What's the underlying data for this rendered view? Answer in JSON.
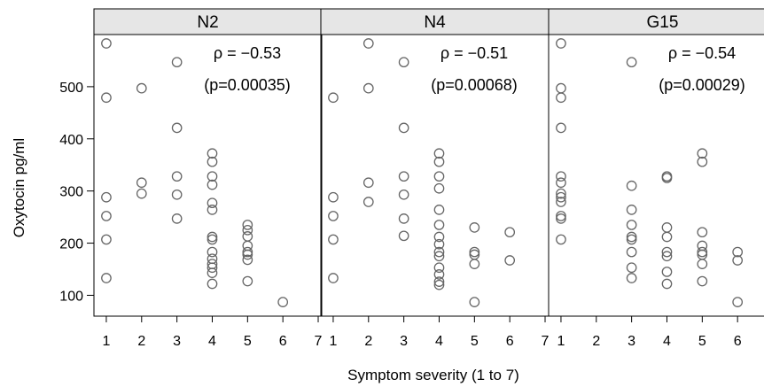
{
  "chart_data": {
    "type": "scatter",
    "xlabel": "Symptom severity (1 to 7)",
    "ylabel": "Oxytocin pg/ml",
    "xlim": [
      0.65,
      7.1
    ],
    "ylim": [
      60,
      600
    ],
    "xticks": [
      1,
      2,
      3,
      4,
      5,
      6,
      7
    ],
    "yticks": [
      100,
      200,
      300,
      400,
      500
    ],
    "marker": "open-circle",
    "marker_color": "#666666",
    "grid": false,
    "panels": [
      {
        "label": "N2",
        "rho_text": "ρ = −0.53",
        "p_text": "(p=0.00035)",
        "points": [
          {
            "x": 1,
            "y": 583
          },
          {
            "x": 1,
            "y": 479
          },
          {
            "x": 1,
            "y": 288
          },
          {
            "x": 1,
            "y": 252
          },
          {
            "x": 1,
            "y": 207
          },
          {
            "x": 1,
            "y": 133
          },
          {
            "x": 2,
            "y": 497
          },
          {
            "x": 2,
            "y": 316
          },
          {
            "x": 2,
            "y": 295
          },
          {
            "x": 3,
            "y": 547
          },
          {
            "x": 3,
            "y": 421
          },
          {
            "x": 3,
            "y": 328
          },
          {
            "x": 3,
            "y": 293
          },
          {
            "x": 3,
            "y": 247
          },
          {
            "x": 4,
            "y": 372
          },
          {
            "x": 4,
            "y": 356
          },
          {
            "x": 4,
            "y": 328
          },
          {
            "x": 4,
            "y": 312
          },
          {
            "x": 4,
            "y": 277
          },
          {
            "x": 4,
            "y": 264
          },
          {
            "x": 4,
            "y": 212
          },
          {
            "x": 4,
            "y": 207
          },
          {
            "x": 4,
            "y": 183
          },
          {
            "x": 4,
            "y": 170
          },
          {
            "x": 4,
            "y": 160
          },
          {
            "x": 4,
            "y": 153
          },
          {
            "x": 4,
            "y": 143
          },
          {
            "x": 4,
            "y": 122
          },
          {
            "x": 5,
            "y": 235
          },
          {
            "x": 5,
            "y": 225
          },
          {
            "x": 5,
            "y": 213
          },
          {
            "x": 5,
            "y": 195
          },
          {
            "x": 5,
            "y": 183
          },
          {
            "x": 5,
            "y": 178
          },
          {
            "x": 5,
            "y": 168
          },
          {
            "x": 5,
            "y": 127
          },
          {
            "x": 6,
            "y": 87
          }
        ]
      },
      {
        "label": "N4",
        "rho_text": "ρ = −0.51",
        "p_text": "(p=0.00068)",
        "points": [
          {
            "x": 1,
            "y": 479
          },
          {
            "x": 1,
            "y": 288
          },
          {
            "x": 1,
            "y": 252
          },
          {
            "x": 1,
            "y": 207
          },
          {
            "x": 1,
            "y": 133
          },
          {
            "x": 2,
            "y": 583
          },
          {
            "x": 2,
            "y": 497
          },
          {
            "x": 2,
            "y": 316
          },
          {
            "x": 2,
            "y": 279
          },
          {
            "x": 3,
            "y": 547
          },
          {
            "x": 3,
            "y": 421
          },
          {
            "x": 3,
            "y": 328
          },
          {
            "x": 3,
            "y": 293
          },
          {
            "x": 3,
            "y": 247
          },
          {
            "x": 3,
            "y": 214
          },
          {
            "x": 4,
            "y": 372
          },
          {
            "x": 4,
            "y": 356
          },
          {
            "x": 4,
            "y": 328
          },
          {
            "x": 4,
            "y": 305
          },
          {
            "x": 4,
            "y": 264
          },
          {
            "x": 4,
            "y": 235
          },
          {
            "x": 4,
            "y": 212
          },
          {
            "x": 4,
            "y": 198
          },
          {
            "x": 4,
            "y": 183
          },
          {
            "x": 4,
            "y": 175
          },
          {
            "x": 4,
            "y": 153
          },
          {
            "x": 4,
            "y": 140
          },
          {
            "x": 4,
            "y": 126
          },
          {
            "x": 4,
            "y": 120
          },
          {
            "x": 5,
            "y": 230
          },
          {
            "x": 5,
            "y": 183
          },
          {
            "x": 5,
            "y": 178
          },
          {
            "x": 5,
            "y": 160
          },
          {
            "x": 5,
            "y": 87
          },
          {
            "x": 6,
            "y": 221
          },
          {
            "x": 6,
            "y": 167
          }
        ]
      },
      {
        "label": "G15",
        "rho_text": "ρ = −0.54",
        "p_text": "(p=0.00029)",
        "points": [
          {
            "x": 1,
            "y": 583
          },
          {
            "x": 1,
            "y": 497
          },
          {
            "x": 1,
            "y": 479
          },
          {
            "x": 1,
            "y": 421
          },
          {
            "x": 1,
            "y": 328
          },
          {
            "x": 1,
            "y": 316
          },
          {
            "x": 1,
            "y": 295
          },
          {
            "x": 1,
            "y": 288
          },
          {
            "x": 1,
            "y": 279
          },
          {
            "x": 1,
            "y": 252
          },
          {
            "x": 1,
            "y": 247
          },
          {
            "x": 1,
            "y": 207
          },
          {
            "x": 3,
            "y": 547
          },
          {
            "x": 3,
            "y": 310
          },
          {
            "x": 3,
            "y": 264
          },
          {
            "x": 3,
            "y": 235
          },
          {
            "x": 3,
            "y": 212
          },
          {
            "x": 3,
            "y": 207
          },
          {
            "x": 3,
            "y": 183
          },
          {
            "x": 3,
            "y": 153
          },
          {
            "x": 3,
            "y": 133
          },
          {
            "x": 4,
            "y": 328
          },
          {
            "x": 4,
            "y": 325
          },
          {
            "x": 4,
            "y": 230
          },
          {
            "x": 4,
            "y": 212
          },
          {
            "x": 4,
            "y": 183
          },
          {
            "x": 4,
            "y": 175
          },
          {
            "x": 4,
            "y": 145
          },
          {
            "x": 4,
            "y": 122
          },
          {
            "x": 5,
            "y": 372
          },
          {
            "x": 5,
            "y": 356
          },
          {
            "x": 5,
            "y": 221
          },
          {
            "x": 5,
            "y": 195
          },
          {
            "x": 5,
            "y": 183
          },
          {
            "x": 5,
            "y": 178
          },
          {
            "x": 5,
            "y": 160
          },
          {
            "x": 5,
            "y": 127
          },
          {
            "x": 6,
            "y": 183
          },
          {
            "x": 6,
            "y": 167
          },
          {
            "x": 6,
            "y": 87
          }
        ]
      }
    ]
  }
}
